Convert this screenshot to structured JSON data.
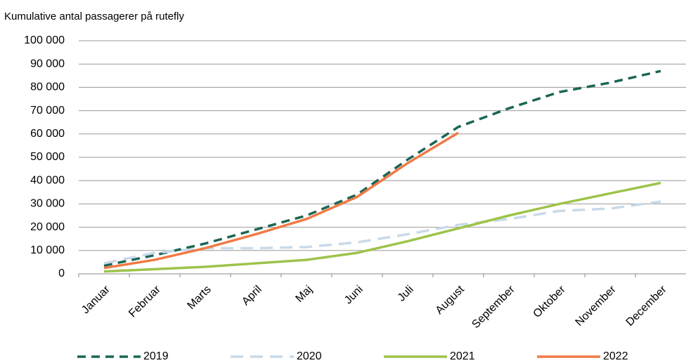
{
  "chart_data": {
    "type": "line",
    "y_axis_title": "Kumulative antal passagerer på rutefly",
    "categories": [
      "Januar",
      "Februar",
      "Marts",
      "April",
      "Maj",
      "Juni",
      "Juli",
      "August",
      "September",
      "Oktober",
      "November",
      "December"
    ],
    "series": [
      {
        "name": "2019",
        "color": "#1a6655",
        "dash": "12 8",
        "values": [
          3500,
          8000,
          13000,
          19000,
          25000,
          34000,
          49000,
          63000,
          71000,
          78000,
          82000,
          87000
        ]
      },
      {
        "name": "2020",
        "color": "#c9d9e8",
        "dash": "18 10",
        "values": [
          4500,
          9000,
          11000,
          11000,
          11500,
          13500,
          17000,
          21000,
          23500,
          27000,
          28000,
          31000
        ]
      },
      {
        "name": "2021",
        "color": "#9dc34a",
        "values": [
          1000,
          2000,
          3000,
          4500,
          6000,
          9000,
          14000,
          19500,
          25000,
          30000,
          34500,
          39000
        ]
      },
      {
        "name": "2022",
        "color": "#f07a45",
        "values": [
          2500,
          6000,
          11000,
          17000,
          23500,
          33000,
          47500,
          60500,
          null,
          null,
          null,
          null
        ]
      }
    ],
    "ylim": [
      0,
      100000
    ],
    "yticks": [
      0,
      {
        "value": 10000,
        "label": "10 000"
      },
      {
        "value": 20000,
        "label": "20 000"
      },
      {
        "value": 30000,
        "label": "30 000"
      },
      {
        "value": 40000,
        "label": "40 000"
      },
      {
        "value": 50000,
        "label": "50 000"
      },
      {
        "value": 60000,
        "label": "60 000"
      },
      {
        "value": 70000,
        "label": "70 000"
      },
      {
        "value": 80000,
        "label": "80 000"
      },
      {
        "value": 90000,
        "label": "90 000"
      },
      {
        "value": 100000,
        "label": "100 000"
      }
    ],
    "grid": true
  }
}
